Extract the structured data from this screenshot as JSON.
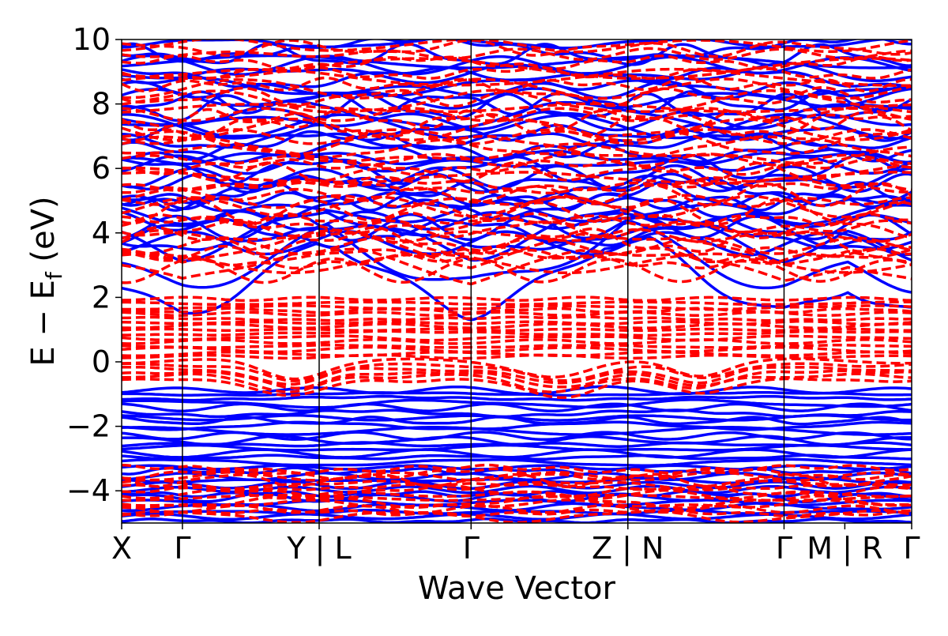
{
  "chart_data": {
    "type": "line",
    "xlabel": "Wave Vector",
    "ylabel": "E − E_f (eV)",
    "ylabel_main": "E − E",
    "ylabel_sub": "f",
    "ylabel_unit": " (eV)",
    "ylim": [
      -5,
      10
    ],
    "yticks": [
      -4,
      -2,
      0,
      2,
      4,
      6,
      8,
      10
    ],
    "ytick_labels": [
      "−4",
      "−2",
      "0",
      "2",
      "4",
      "6",
      "8",
      "10"
    ],
    "xlim": [
      0,
      13.0
    ],
    "kpoint_boundaries": [
      1.0,
      3.25,
      5.75,
      8.33,
      10.9
    ],
    "kpoint_labels": [
      {
        "x": 0.0,
        "label": "X"
      },
      {
        "x": 1.0,
        "label": "Γ"
      },
      {
        "x": 3.25,
        "label": "Y | L"
      },
      {
        "x": 5.75,
        "label": "Γ"
      },
      {
        "x": 8.33,
        "label": "Z | N"
      },
      {
        "x": 10.9,
        "label": "Γ"
      },
      {
        "x": 11.9,
        "label": "M | R"
      },
      {
        "x": 13.0,
        "label": "Γ"
      }
    ],
    "grid": false,
    "series": [
      {
        "style": "solid",
        "color": "#0000ff"
      },
      {
        "style": "dashed",
        "color": "#ff0000"
      }
    ],
    "gamma_x": [
      1.0,
      5.75,
      10.9,
      13.0
    ],
    "representative_features": {
      "blue_conduction_min_at_gamma_eV": 1.5,
      "blue_valence_max_eV": -0.8,
      "red_band_cluster_range_eV": [
        -0.7,
        2.0
      ],
      "red_deep_cluster_range_eV": [
        -4.8,
        -3.3
      ]
    }
  }
}
